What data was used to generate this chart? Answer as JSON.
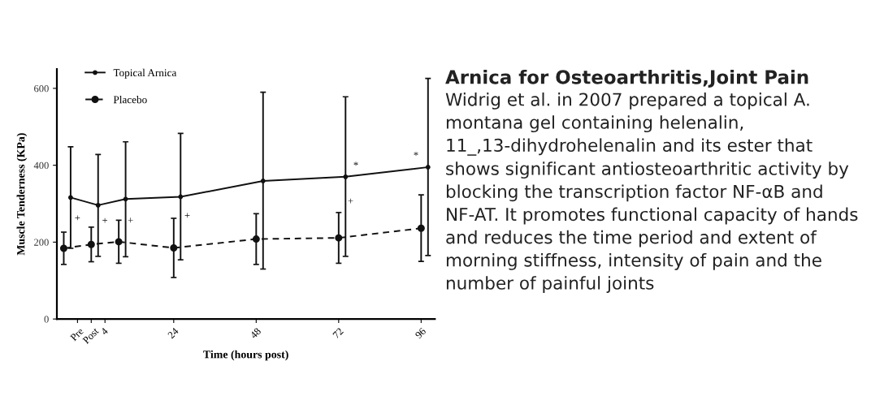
{
  "chart_data": [
    {
      "type": "line",
      "xlabel": "Time (hours post)",
      "ylabel": "Muscle Tenderness (KPa)",
      "xlim": [
        -10,
        100
      ],
      "xticks": [
        {
          "value": -4,
          "label": "Pre"
        },
        {
          "value": 0,
          "label": "Post"
        },
        4,
        24,
        48,
        72,
        96
      ],
      "ylim": [
        0,
        650
      ],
      "yticks": [
        0,
        200,
        400,
        600
      ],
      "legend": "top left",
      "series": [
        {
          "name": "Topical Arnica",
          "color": "#111111",
          "line_style": "solid",
          "marker": "circle",
          "x": [
            -6,
            2,
            10,
            26,
            50,
            74,
            98
          ],
          "values": [
            316,
            296,
            312,
            318,
            359,
            370,
            395
          ],
          "errors": [
            [
              184,
              448
            ],
            [
              163,
              428
            ],
            [
              162,
              461
            ],
            [
              154,
              483
            ],
            [
              130,
              590
            ],
            [
              163,
              578
            ],
            [
              165,
              626
            ]
          ]
        },
        {
          "name": "Placebo",
          "color": "#111111",
          "line_style": "dashed",
          "marker": "circle",
          "x": [
            -8,
            0,
            8,
            24,
            48,
            72,
            96
          ],
          "values": [
            184,
            194,
            201,
            185,
            208,
            211,
            236
          ],
          "errors": [
            [
              142,
              226
            ],
            [
              149,
              239
            ],
            [
              145,
              257
            ],
            [
              108,
              262
            ],
            [
              142,
              274
            ],
            [
              145,
              277
            ],
            [
              150,
              323
            ]
          ]
        }
      ],
      "annotations": [
        "+",
        "+",
        "+",
        "+",
        "*",
        "+",
        "*"
      ]
    },
    {
      "type": "other",
      "title": "Arnica for Osteoarthritis,Joint Pain",
      "annotations": [
        "Widrig et al. in 2007 prepared a topical A. montana gel containing helenalin, 11_,13-dihydrohelenalin and its ester that shows significant antiosteoarthritic activity by blocking the transcription factor NF-αB and NF-AT. It promotes functional capacity of hands and reduces the time period and extent of morning stiffness, intensity of pain and the number of painful joints"
      ]
    }
  ]
}
